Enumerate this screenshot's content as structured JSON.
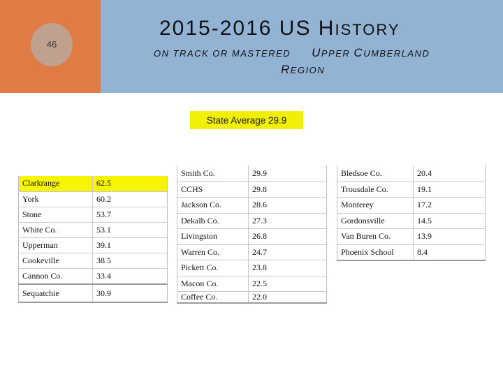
{
  "slide": {
    "number": "46"
  },
  "header": {
    "title_a": "2015-2016 US H",
    "title_b": "ISTORY",
    "subtitle_a": "ON TRACK OR MASTERED",
    "subtitle_cap_u": "U",
    "subtitle_b": "PPER ",
    "subtitle_cap_c": "C",
    "subtitle_c": "UMBERLAND",
    "region_cap": "R",
    "region_rest": "EGION"
  },
  "state_average": {
    "label": "State Average",
    "value": "29.9"
  },
  "tables": {
    "left": [
      {
        "name": "Clarkrange",
        "value": "62.5",
        "highlight": true
      },
      {
        "name": "York",
        "value": "60.2"
      },
      {
        "name": "Stone",
        "value": "53.7"
      },
      {
        "name": "White Co.",
        "value": "53.1"
      },
      {
        "name": "Upperman",
        "value": "39.1"
      },
      {
        "name": "Cookeville",
        "value": "38.5"
      },
      {
        "name": "Cannon Co.",
        "value": "33.4"
      },
      {
        "name": "Sequatchie",
        "value": "30.9"
      }
    ],
    "middle": [
      {
        "name": "Smith Co.",
        "value": "29.9"
      },
      {
        "name": "CCHS",
        "value": "29.8"
      },
      {
        "name": "Jackson Co.",
        "value": "28.6"
      },
      {
        "name": "Dekalb Co.",
        "value": "27.3"
      },
      {
        "name": "Livingston",
        "value": "26.8"
      },
      {
        "name": "Warren Co.",
        "value": "24.7"
      },
      {
        "name": "Pickett Co.",
        "value": "23.8"
      },
      {
        "name": "Macon Co.",
        "value": "22.5"
      },
      {
        "name": "Coffee Co.",
        "value": "22.0"
      }
    ],
    "right": [
      {
        "name": "Bledsoe Co.",
        "value": "20.4"
      },
      {
        "name": "Trousdale Co.",
        "value": "19.1"
      },
      {
        "name": "Monterey",
        "value": "17.2"
      },
      {
        "name": "Gordonsville",
        "value": "14.5"
      },
      {
        "name": "Van Buren Co.",
        "value": "13.9"
      },
      {
        "name": "Phoenix School",
        "value": "8.4"
      }
    ]
  },
  "colors": {
    "orange_band": "#e07b46",
    "blue_band": "#93b3d4",
    "highlight": "#f7f400"
  }
}
